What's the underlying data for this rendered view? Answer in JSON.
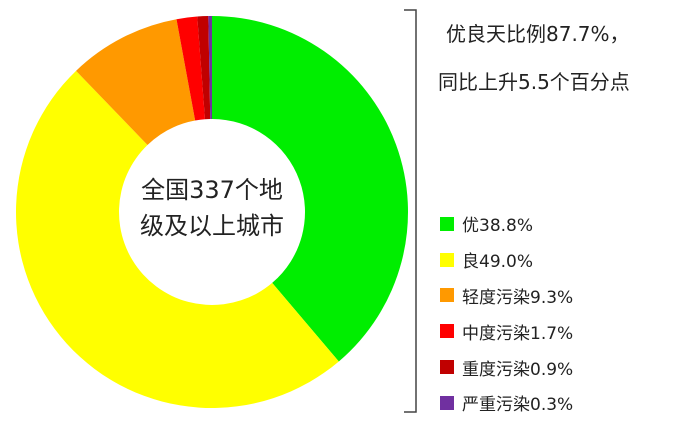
{
  "chart_data": {
    "type": "pie",
    "donut": true,
    "center_label": [
      "全国337个地",
      "级及以上城市"
    ],
    "headline": [
      "优良天比例87.7%，",
      "同比上升5.5个百分点"
    ],
    "legend_placement": "right",
    "slices": [
      {
        "label": "优38.8%",
        "value": 38.8,
        "color": "#00ee00"
      },
      {
        "label": "良49.0%",
        "value": 49.0,
        "color": "#ffff00"
      },
      {
        "label": "轻度污染9.3%",
        "value": 9.3,
        "color": "#ff9900"
      },
      {
        "label": "中度污染1.7%",
        "value": 1.7,
        "color": "#ff0000"
      },
      {
        "label": "重度污染0.9%",
        "value": 0.9,
        "color": "#c00000"
      },
      {
        "label": "严重污染0.3%",
        "value": 0.3,
        "color": "#7030a0"
      }
    ]
  }
}
